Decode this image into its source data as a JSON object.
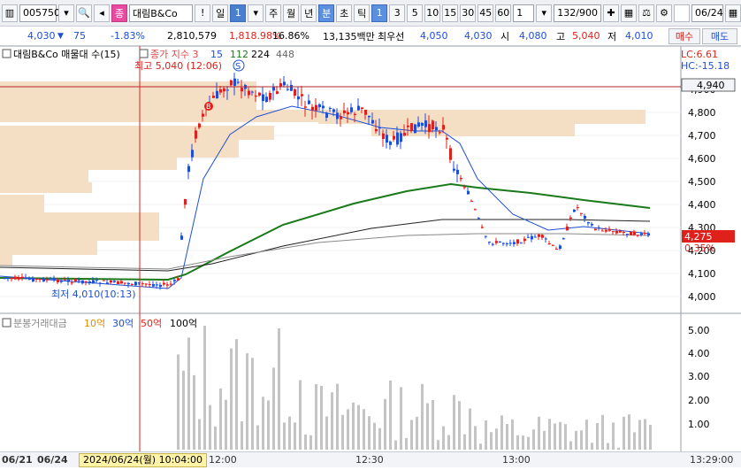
{
  "toolbar": {
    "code": "005750",
    "name_badge": "종",
    "stock_name": "대림B&Co",
    "exclaim": "!",
    "periods": [
      "일",
      "1",
      "주",
      "월",
      "년",
      "분",
      "초",
      "틱"
    ],
    "minute_options": [
      "1",
      "3",
      "5",
      "10",
      "15",
      "30",
      "45",
      "60"
    ],
    "multiplier": "1",
    "count": "132/900",
    "date": "06/24"
  },
  "quote": {
    "price": "4,030",
    "arrow": "▼",
    "change": "75",
    "change_pct": "-1.83%",
    "volume": "2,810,579",
    "vol_ratio": "1,818.98%",
    "turnover": "16.86%",
    "amount": "13,135백만",
    "best_label": "최우선",
    "best_ask": "4,050",
    "best_bid": "4,030",
    "open_label": "시",
    "open": "4,080",
    "high_label": "고",
    "high": "5,040",
    "low_label": "저",
    "low": "4,010",
    "buy_button": "매수",
    "sell_button": "매도"
  },
  "legend": {
    "title": "대림B&Co 매물대 수(15)",
    "ma_label": "종가 지수 3",
    "ma1": "15",
    "ma2": "112",
    "ma3": "224",
    "ma4": "448",
    "high_note": "최고 5,040 (12:06)",
    "low_note": "최저 4,010(10:13)",
    "lc": "LC:6.61",
    "hc": "HC:-15.18",
    "marker_s": "S",
    "marker_b": "B"
  },
  "price_axis": [
    "4,900",
    "4,800",
    "4,700",
    "4,600",
    "4,500",
    "4,400",
    "4,300",
    "4,200",
    "4,100",
    "4,000"
  ],
  "price_tag_high": "4,940",
  "price_tag_current": "4,275",
  "price_tag_pct": "0.35%",
  "volume_legend": {
    "title": "분봉거래대금",
    "l1": "10억",
    "l2": "30억",
    "l3": "50억",
    "l4": "100억"
  },
  "volume_axis": [
    "5.00",
    "4.00",
    "3.00",
    "2.00",
    "1.00"
  ],
  "time_axis": {
    "d1": "06/21",
    "d2": "06/24",
    "tip": "2024/06/24(월) 10:04:00",
    "t1": "12:00",
    "t2": "12:30",
    "t3": "13:00",
    "t4": "13:29:00"
  },
  "colors": {
    "up": "#e0201a",
    "down": "#1d4fd6",
    "ma_green": "#1a7a1a",
    "profile": "#f5dfc4"
  }
}
